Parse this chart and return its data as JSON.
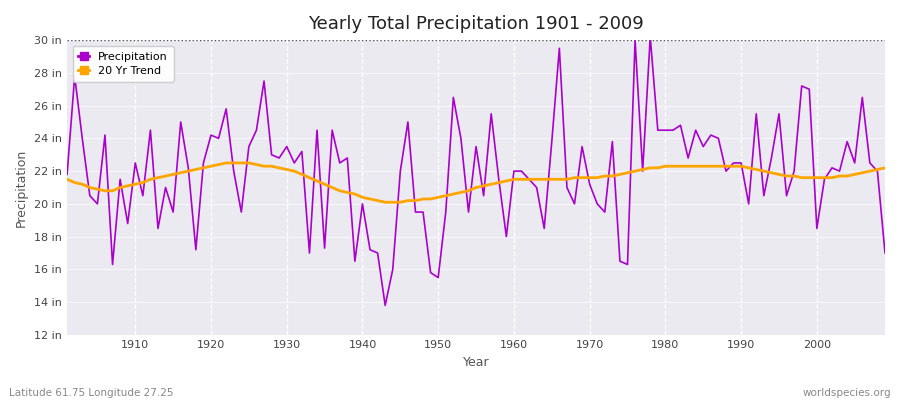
{
  "title": "Yearly Total Precipitation 1901 - 2009",
  "xlabel": "Year",
  "ylabel": "Precipitation",
  "lat_lon_label": "Latitude 61.75 Longitude 27.25",
  "source_label": "worldspecies.org",
  "ylim": [
    12,
    30
  ],
  "yticks": [
    12,
    14,
    16,
    18,
    20,
    22,
    24,
    26,
    28,
    30
  ],
  "ytick_labels": [
    "12 in",
    "14 in",
    "16 in",
    "18 in",
    "20 in",
    "22 in",
    "24 in",
    "26 in",
    "28 in",
    "30 in"
  ],
  "xlim": [
    1901,
    2009
  ],
  "xticks": [
    1910,
    1920,
    1930,
    1940,
    1950,
    1960,
    1970,
    1980,
    1990,
    2000
  ],
  "precipitation_color": "#AA00CC",
  "trend_color": "#FFA500",
  "bg_color": "#EAEAF0",
  "fig_bg_color": "#FFFFFF",
  "precipitation": [
    21.8,
    27.8,
    24.0,
    20.5,
    20.0,
    24.2,
    16.3,
    21.5,
    18.8,
    22.5,
    20.5,
    24.5,
    18.5,
    21.0,
    19.5,
    25.0,
    22.2,
    17.2,
    22.5,
    24.2,
    24.0,
    25.8,
    22.0,
    19.5,
    23.5,
    24.5,
    27.5,
    23.0,
    22.8,
    23.5,
    22.5,
    23.2,
    17.0,
    24.5,
    17.3,
    24.5,
    22.5,
    22.8,
    16.5,
    20.0,
    17.2,
    17.0,
    13.8,
    16.0,
    22.0,
    25.0,
    19.5,
    19.5,
    15.8,
    15.5,
    19.5,
    26.5,
    24.0,
    19.5,
    23.5,
    20.5,
    25.5,
    21.5,
    18.0,
    22.0,
    22.0,
    21.5,
    21.0,
    18.5,
    23.8,
    29.5,
    21.0,
    20.0,
    23.5,
    21.2,
    20.0,
    19.5,
    23.8,
    16.5,
    16.3,
    30.0,
    22.0,
    30.2,
    24.5,
    24.5,
    24.5,
    24.8,
    22.8,
    24.5,
    23.5,
    24.2,
    24.0,
    22.0,
    22.5,
    22.5,
    20.0,
    25.5,
    20.5,
    22.8,
    25.5,
    20.5,
    22.0,
    27.2,
    27.0,
    18.5,
    21.5,
    22.2,
    22.0,
    23.8,
    22.5,
    26.5,
    22.5,
    22.0,
    17.0
  ],
  "years": [
    1901,
    1902,
    1903,
    1904,
    1905,
    1906,
    1907,
    1908,
    1909,
    1910,
    1911,
    1912,
    1913,
    1914,
    1915,
    1916,
    1917,
    1918,
    1919,
    1920,
    1921,
    1922,
    1923,
    1924,
    1925,
    1926,
    1927,
    1928,
    1929,
    1930,
    1931,
    1932,
    1933,
    1934,
    1935,
    1936,
    1937,
    1938,
    1939,
    1940,
    1941,
    1942,
    1943,
    1944,
    1945,
    1946,
    1947,
    1948,
    1949,
    1950,
    1951,
    1952,
    1953,
    1954,
    1955,
    1956,
    1957,
    1958,
    1959,
    1960,
    1961,
    1962,
    1963,
    1964,
    1965,
    1966,
    1967,
    1968,
    1969,
    1970,
    1971,
    1972,
    1973,
    1974,
    1975,
    1976,
    1977,
    1978,
    1979,
    1980,
    1981,
    1982,
    1983,
    1984,
    1985,
    1986,
    1987,
    1988,
    1989,
    1990,
    1991,
    1992,
    1993,
    1994,
    1995,
    1996,
    1997,
    1998,
    1999,
    2000,
    2001,
    2002,
    2003,
    2004,
    2005,
    2006,
    2007,
    2008,
    2009
  ],
  "trend": [
    21.5,
    21.3,
    21.2,
    21.0,
    20.9,
    20.8,
    20.8,
    21.0,
    21.1,
    21.2,
    21.3,
    21.5,
    21.6,
    21.7,
    21.8,
    21.9,
    22.0,
    22.1,
    22.2,
    22.3,
    22.4,
    22.5,
    22.5,
    22.5,
    22.5,
    22.4,
    22.3,
    22.3,
    22.2,
    22.1,
    22.0,
    21.8,
    21.6,
    21.4,
    21.2,
    21.0,
    20.8,
    20.7,
    20.6,
    20.4,
    20.3,
    20.2,
    20.1,
    20.1,
    20.1,
    20.2,
    20.2,
    20.3,
    20.3,
    20.4,
    20.5,
    20.6,
    20.7,
    20.8,
    21.0,
    21.1,
    21.2,
    21.3,
    21.4,
    21.5,
    21.5,
    21.5,
    21.5,
    21.5,
    21.5,
    21.5,
    21.5,
    21.6,
    21.6,
    21.6,
    21.6,
    21.7,
    21.7,
    21.8,
    21.9,
    22.0,
    22.1,
    22.2,
    22.2,
    22.3,
    22.3,
    22.3,
    22.3,
    22.3,
    22.3,
    22.3,
    22.3,
    22.3,
    22.3,
    22.3,
    22.2,
    22.1,
    22.0,
    21.9,
    21.8,
    21.7,
    21.7,
    21.6,
    21.6,
    21.6,
    21.6,
    21.6,
    21.7,
    21.7,
    21.8,
    21.9,
    22.0,
    22.1,
    22.2
  ]
}
